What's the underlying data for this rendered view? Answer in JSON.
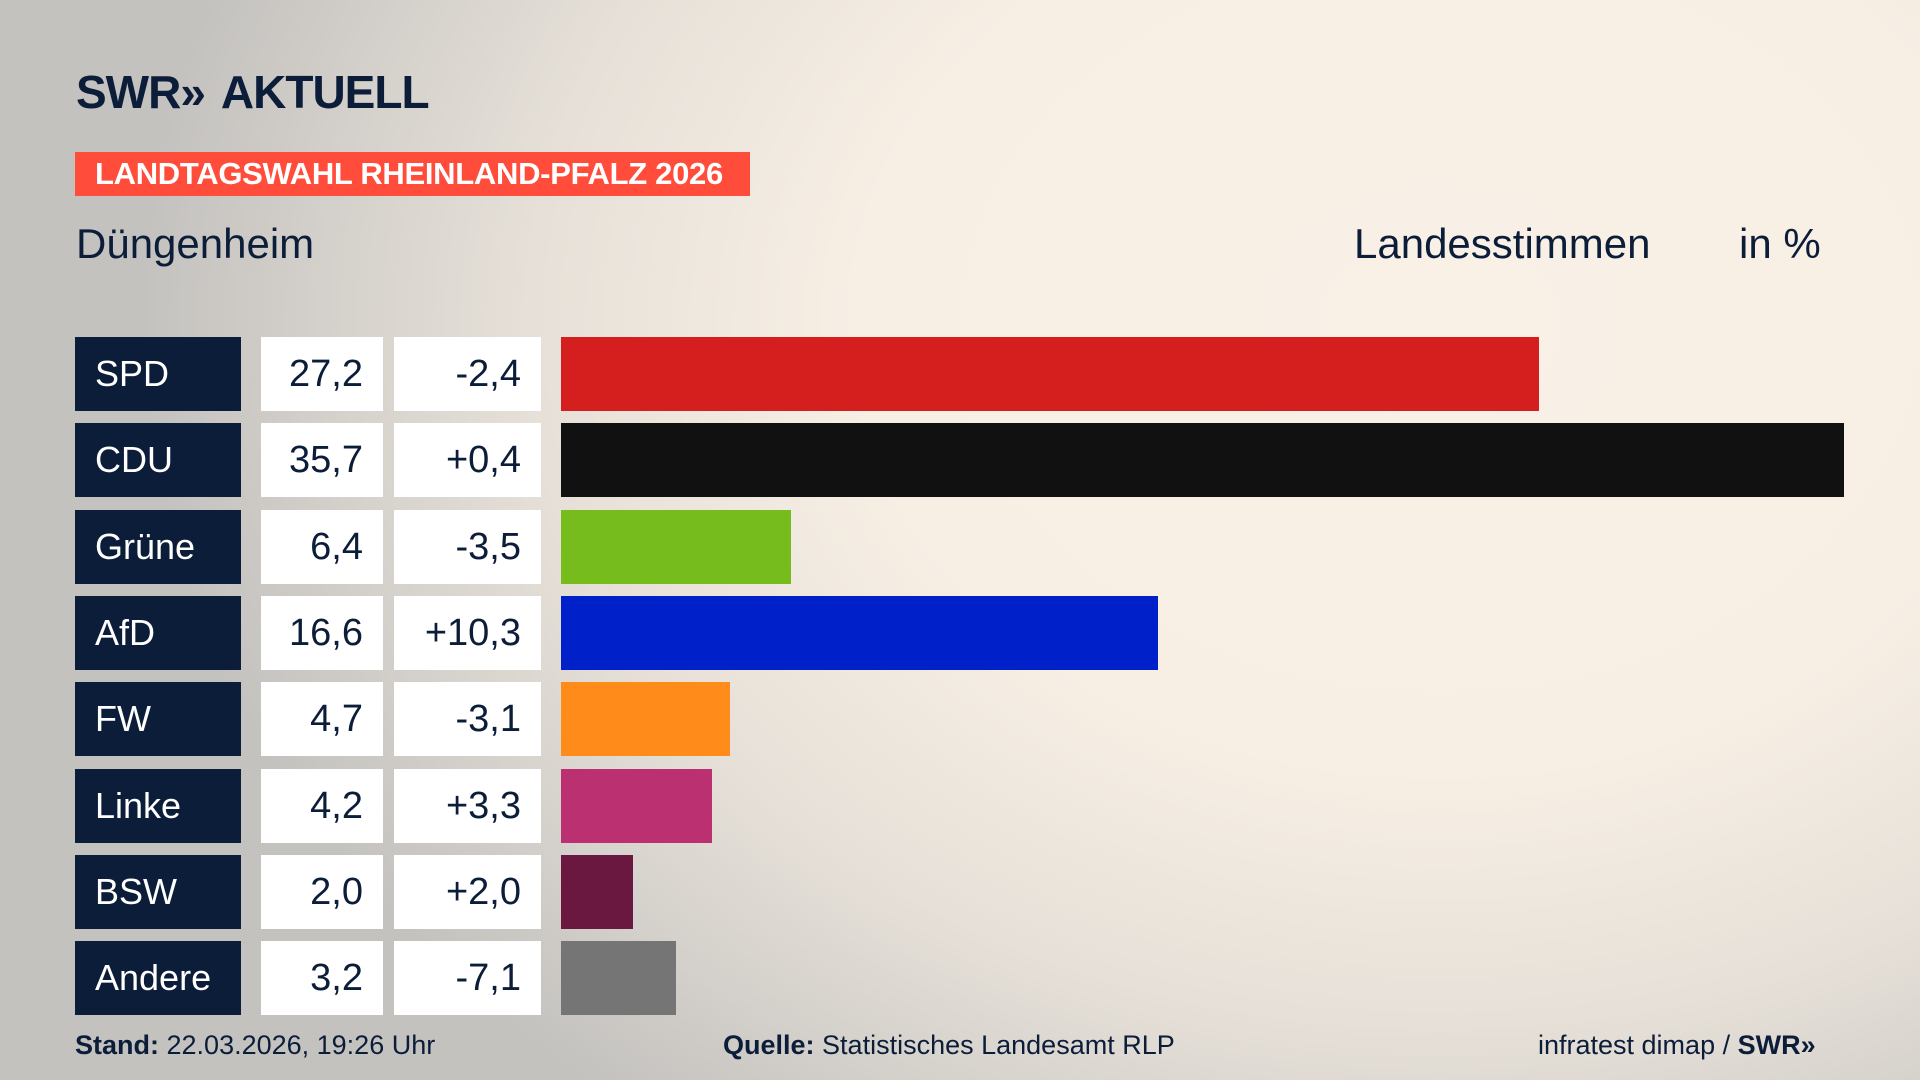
{
  "brand": {
    "logo": "SWR",
    "logo_arrows": "»",
    "name": "AKTUELL"
  },
  "banner": "LANDTAGSWAHL RHEINLAND-PFALZ 2026",
  "place": "Düngenheim",
  "header": {
    "type": "Landesstimmen",
    "unit": "in %"
  },
  "chart_data": {
    "type": "bar",
    "orientation": "horizontal",
    "categories": [
      "SPD",
      "CDU",
      "Grüne",
      "AfD",
      "FW",
      "Linke",
      "BSW",
      "Andere"
    ],
    "values": [
      27.2,
      35.7,
      6.4,
      16.6,
      4.7,
      4.2,
      2.0,
      3.2
    ],
    "value_labels": [
      "27,2",
      "35,7",
      "6,4",
      "16,6",
      "4,7",
      "4,2",
      "2,0",
      "3,2"
    ],
    "diff_labels": [
      "-2,4",
      "+0,4",
      "-3,5",
      "+10,3",
      "-3,1",
      "+3,3",
      "+2,0",
      "-7,1"
    ],
    "colors": [
      "#d51f1f",
      "#111111",
      "#76bc1c",
      "#0021c9",
      "#ff8c1a",
      "#bb3070",
      "#6a1840",
      "#757575"
    ],
    "xlim": [
      0,
      35.7
    ],
    "grid": false
  },
  "footer": {
    "stand_label": "Stand:",
    "stand_value": "22.03.2026, 19:26 Uhr",
    "source_label": "Quelle:",
    "source_value": "Statistisches Landesamt RLP",
    "credit": "infratest dimap /",
    "credit_logo": "SWR»"
  }
}
